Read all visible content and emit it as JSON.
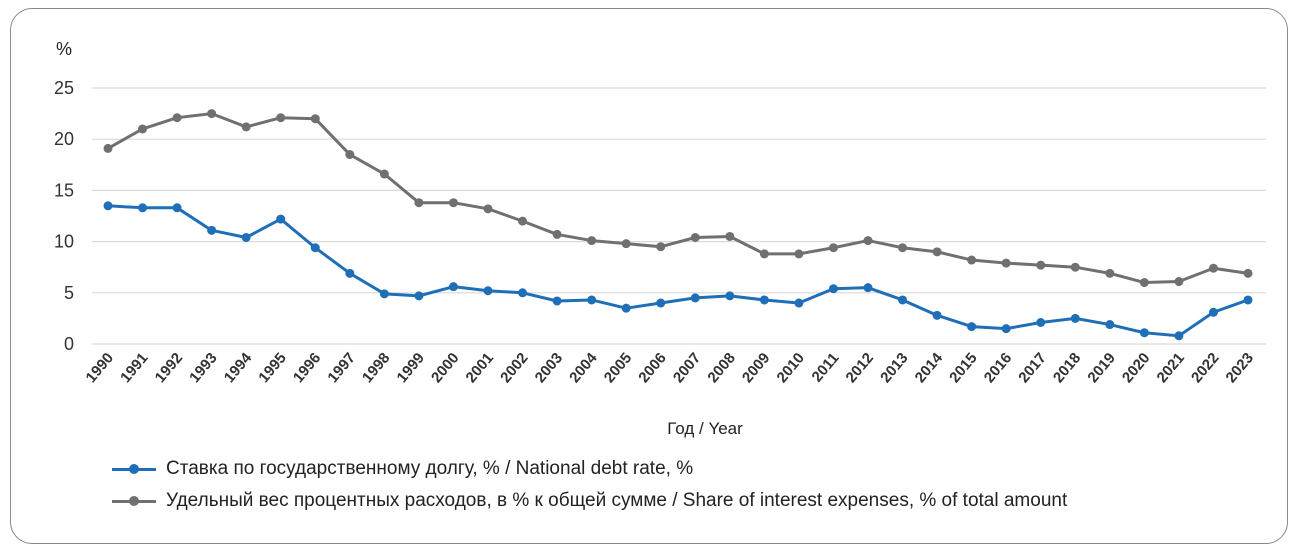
{
  "chart_data": {
    "type": "line",
    "ylabel": "%",
    "xlabel": "Год / Year",
    "ylim": [
      0,
      25
    ],
    "yticks": [
      0,
      5,
      10,
      15,
      20,
      25
    ],
    "grid": true,
    "legend_position": "bottom",
    "x": [
      "1990",
      "1991",
      "1992",
      "1993",
      "1994",
      "1995",
      "1996",
      "1997",
      "1998",
      "1999",
      "2000",
      "2001",
      "2002",
      "2003",
      "2004",
      "2005",
      "2006",
      "2007",
      "2008",
      "2009",
      "2010",
      "2011",
      "2012",
      "2013",
      "2014",
      "2015",
      "2016",
      "2017",
      "2018",
      "2019",
      "2020",
      "2021",
      "2022",
      "2023"
    ],
    "series": [
      {
        "name": "Ставка по государственному долгу, % / National debt rate, %",
        "color": "#1f6fb8",
        "values": [
          13.5,
          13.3,
          13.3,
          11.1,
          10.4,
          12.2,
          9.4,
          6.9,
          4.9,
          4.7,
          5.6,
          5.2,
          5.0,
          4.2,
          4.3,
          3.5,
          4.0,
          4.5,
          4.7,
          4.3,
          4.0,
          5.4,
          5.5,
          4.3,
          2.8,
          1.7,
          1.5,
          2.1,
          2.5,
          1.9,
          1.1,
          0.8,
          3.1,
          4.3
        ]
      },
      {
        "name": "Удельный вес процентных расходов, в % к общей сумме / Share of interest expenses, % of total amount",
        "color": "#707070",
        "values": [
          19.1,
          21.0,
          22.1,
          22.5,
          21.2,
          22.1,
          22.0,
          18.5,
          16.6,
          13.8,
          13.8,
          13.2,
          12.0,
          10.7,
          10.1,
          9.8,
          9.5,
          10.4,
          10.5,
          8.8,
          8.8,
          9.4,
          10.1,
          9.4,
          9.0,
          8.2,
          7.9,
          7.7,
          7.5,
          6.9,
          6.0,
          6.1,
          7.4,
          6.9
        ]
      }
    ]
  }
}
